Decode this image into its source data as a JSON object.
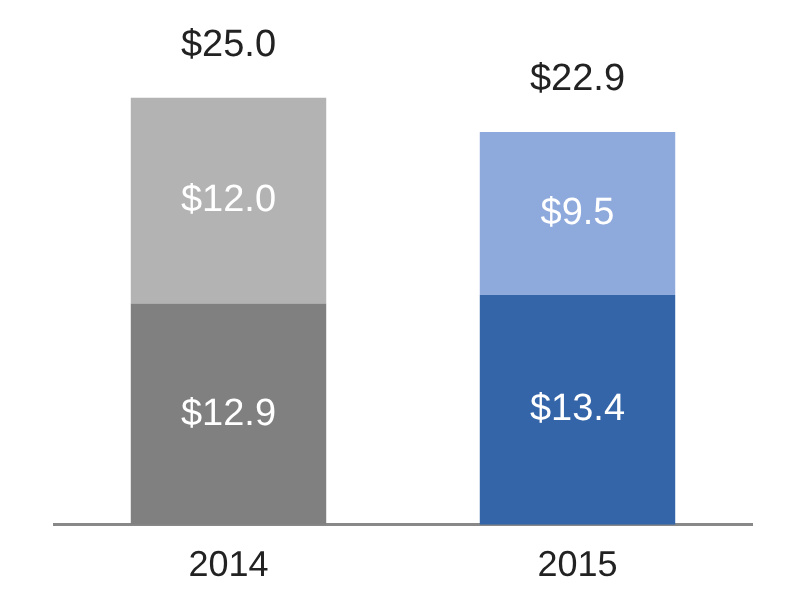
{
  "chart_data": {
    "type": "bar",
    "stacked": true,
    "categories": [
      "2014",
      "2015"
    ],
    "series": [
      {
        "colors": [
          "#808080",
          "#3465a8"
        ],
        "values": [
          12.9,
          13.4
        ],
        "value_labels": [
          "$12.9",
          "$13.4"
        ]
      },
      {
        "colors": [
          "#b3b3b3",
          "#8ea9dc"
        ],
        "values": [
          12.0,
          9.5
        ],
        "value_labels": [
          "$12.0",
          "$9.5"
        ]
      }
    ],
    "totals": [
      "$25.0",
      "$22.9"
    ],
    "legend": false,
    "grid": false
  }
}
